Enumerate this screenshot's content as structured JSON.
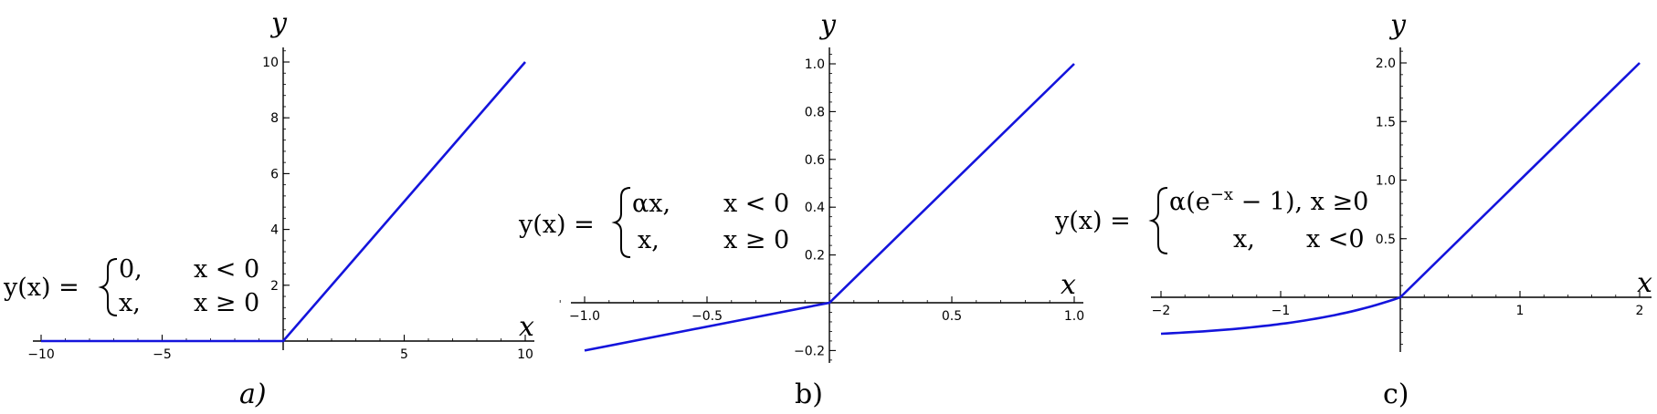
{
  "chart_data": [
    {
      "type": "line",
      "panel_label": "a)",
      "xlabel": "x",
      "ylabel": "y",
      "xlim": [
        -10.5,
        10.4
      ],
      "ylim": [
        -0.2,
        10.4
      ],
      "xticks": [
        -10,
        -5,
        5,
        10
      ],
      "xtick_labels": [
        "−10",
        "−5",
        "5",
        "10"
      ],
      "yticks": [
        2,
        4,
        6,
        8,
        10
      ],
      "ytick_labels": [
        "2",
        "4",
        "6",
        "8",
        "10"
      ],
      "formula": {
        "lhs": "y(x) =",
        "rows": [
          {
            "expr": "0,",
            "cond": "x < 0"
          },
          {
            "expr": "x,",
            "cond": "x ≥ 0"
          }
        ]
      },
      "series": [
        {
          "color": "#1414dc",
          "x": [
            -10,
            0,
            10
          ],
          "y": [
            0,
            0,
            10
          ]
        }
      ],
      "grid": false
    },
    {
      "type": "line",
      "panel_label": "b)",
      "xlabel": "x",
      "ylabel": "y",
      "xlim": [
        -1.1,
        1.05
      ],
      "ylim": [
        -0.26,
        1.07
      ],
      "xticks": [
        -1.0,
        -0.5,
        0.5,
        1.0
      ],
      "xtick_labels": [
        "−1.0",
        "−0.5",
        "0.5",
        "1.0"
      ],
      "yticks": [
        -0.2,
        0.2,
        0.4,
        0.6,
        0.8,
        1.0
      ],
      "ytick_labels": [
        "−0.2",
        "0.2",
        "0.4",
        "0.6",
        "0.8",
        "1.0"
      ],
      "formula": {
        "lhs": "y(x) =",
        "rows": [
          {
            "expr": "αx,",
            "cond": "x < 0"
          },
          {
            "expr": "x,",
            "cond": "x ≥ 0"
          }
        ]
      },
      "series": [
        {
          "color": "#1414dc",
          "x": [
            -1.0,
            0,
            1.0
          ],
          "y": [
            -0.2,
            0,
            1.0
          ]
        }
      ],
      "grid": false
    },
    {
      "type": "line",
      "panel_label": "c)",
      "xlabel": "x",
      "ylabel": "y",
      "xlim": [
        -2.05,
        2.1
      ],
      "ylim": [
        -0.4,
        2.1
      ],
      "xticks": [
        -2,
        -1,
        1,
        2
      ],
      "xtick_labels": [
        "−2",
        "−1",
        "1",
        "2"
      ],
      "yticks": [
        0.5,
        1.0,
        1.5,
        2.0
      ],
      "ytick_labels": [
        "0.5",
        "1.0",
        "1.5",
        "2.0"
      ],
      "formula": {
        "lhs": "y(x) =",
        "row1_expr": "α(e",
        "row1_sup": "−x",
        "row1_rest": " − 1), x ≥0",
        "row2_expr": "x,",
        "row2_cond": "x <0"
      },
      "series": [
        {
          "color": "#1414dc",
          "x": [
            -2.0,
            -1.75,
            -1.5,
            -1.25,
            -1.0,
            -0.75,
            -0.5,
            -0.25,
            0,
            1.0,
            2.0
          ],
          "y": [
            -0.31,
            -0.3,
            -0.28,
            -0.27,
            -0.24,
            -0.21,
            -0.16,
            -0.09,
            0,
            1.0,
            2.0
          ]
        }
      ],
      "grid": false
    }
  ]
}
